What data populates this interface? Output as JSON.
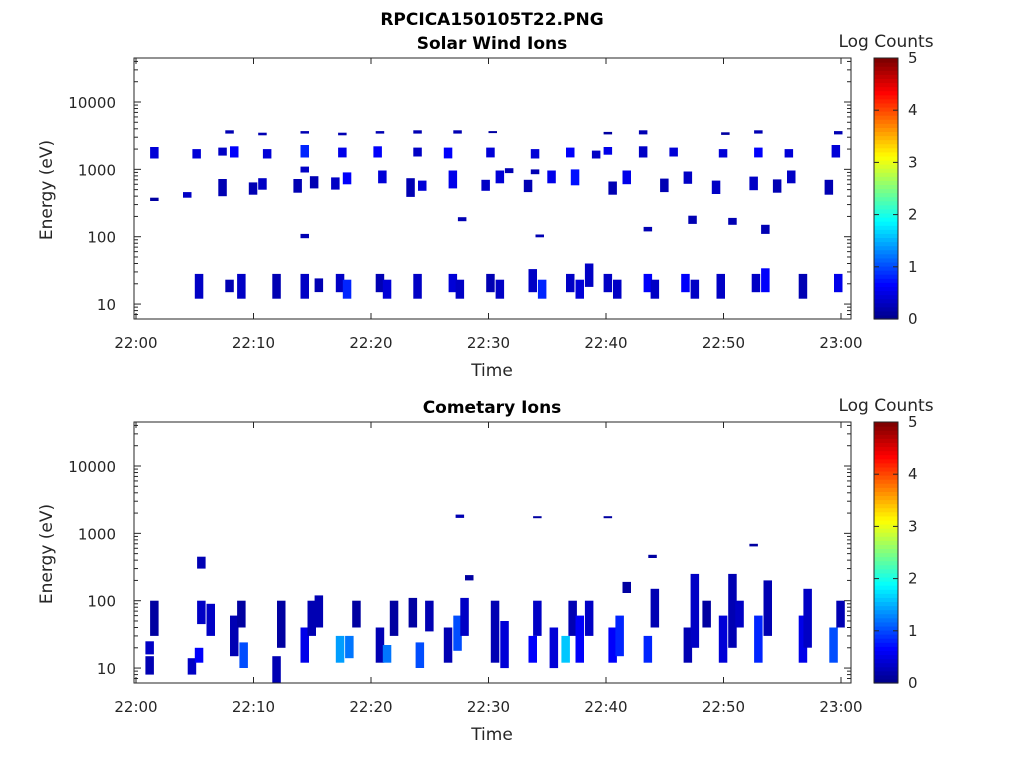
{
  "figure_title": "RPCICA150105T22.PNG",
  "colors": {
    "colormap": [
      "#00008f",
      "#0000ff",
      "#0080ff",
      "#00ffff",
      "#80ff80",
      "#ffff00",
      "#ff8000",
      "#ff0000",
      "#800000"
    ]
  },
  "chart_data": [
    {
      "type": "heatmap",
      "title": "Solar Wind Ions",
      "xlabel": "Time",
      "ylabel": "Energy (eV)",
      "x_range": [
        "22:00",
        "23:00"
      ],
      "x_ticks": [
        "22:00",
        "22:10",
        "22:20",
        "22:30",
        "22:40",
        "22:50",
        "23:00"
      ],
      "y_scale": "log",
      "y_range": [
        6,
        45000
      ],
      "y_ticks": [
        {
          "value": 10,
          "label": "10"
        },
        {
          "value": 100,
          "label": "100"
        },
        {
          "value": 1000,
          "label": "1000"
        },
        {
          "value": 10000,
          "label": "10000"
        }
      ],
      "colorbar": {
        "label": "Log Counts",
        "range": [
          0,
          5
        ],
        "ticks": [
          "0",
          "1",
          "2",
          "3",
          "4",
          "5"
        ]
      },
      "cells": [
        [
          1.2,
          1450,
          2150,
          0.4
        ],
        [
          1.2,
          340,
          380,
          0.1
        ],
        [
          4.0,
          380,
          460,
          0.3
        ],
        [
          4.8,
          1450,
          2000,
          0.4
        ],
        [
          7.0,
          1600,
          2100,
          0.3
        ],
        [
          7.0,
          400,
          720,
          0.2
        ],
        [
          7.6,
          3400,
          3800,
          0.2
        ],
        [
          8.0,
          1500,
          2200,
          0.6
        ],
        [
          9.6,
          420,
          640,
          0.2
        ],
        [
          10.4,
          500,
          740,
          0.3
        ],
        [
          10.4,
          3200,
          3500,
          0.2
        ],
        [
          10.8,
          1450,
          2000,
          0.4
        ],
        [
          13.4,
          450,
          720,
          0.2
        ],
        [
          14.0,
          900,
          1100,
          0.3
        ],
        [
          14.0,
          1500,
          2300,
          0.8
        ],
        [
          14.0,
          3400,
          3700,
          0.2
        ],
        [
          14.0,
          95,
          110,
          0.2
        ],
        [
          14.8,
          520,
          790,
          0.2
        ],
        [
          16.6,
          500,
          760,
          0.3
        ],
        [
          17.2,
          1500,
          2100,
          0.5
        ],
        [
          17.2,
          3200,
          3500,
          0.2
        ],
        [
          17.6,
          600,
          900,
          0.6
        ],
        [
          20.2,
          1500,
          2200,
          0.6
        ],
        [
          20.4,
          3400,
          3700,
          0.2
        ],
        [
          20.6,
          620,
          960,
          0.4
        ],
        [
          23.0,
          390,
          740,
          0.2
        ],
        [
          23.6,
          1550,
          2100,
          0.3
        ],
        [
          23.6,
          3400,
          3800,
          0.2
        ],
        [
          24.0,
          480,
          680,
          0.4
        ],
        [
          26.2,
          1450,
          2100,
          0.6
        ],
        [
          26.6,
          520,
          960,
          0.5
        ],
        [
          27.0,
          3400,
          3800,
          0.2
        ],
        [
          27.4,
          170,
          195,
          0.2
        ],
        [
          29.4,
          480,
          700,
          0.3
        ],
        [
          29.8,
          1500,
          2100,
          0.4
        ],
        [
          30.0,
          3500,
          3700,
          0.1
        ],
        [
          30.6,
          620,
          960,
          0.4
        ],
        [
          31.4,
          880,
          1040,
          0.2
        ],
        [
          33.0,
          460,
          700,
          0.2
        ],
        [
          33.6,
          1450,
          2000,
          0.4
        ],
        [
          33.6,
          850,
          1000,
          0.2
        ],
        [
          34.0,
          98,
          108,
          0.2
        ],
        [
          35.0,
          620,
          960,
          0.5
        ],
        [
          36.6,
          1500,
          2100,
          0.6
        ],
        [
          37.0,
          580,
          1000,
          0.7
        ],
        [
          38.8,
          1450,
          1900,
          0.3
        ],
        [
          39.8,
          1650,
          2150,
          0.5
        ],
        [
          39.8,
          3300,
          3600,
          0.1
        ],
        [
          40.2,
          420,
          660,
          0.2
        ],
        [
          41.4,
          600,
          960,
          0.5
        ],
        [
          42.8,
          3300,
          3800,
          0.2
        ],
        [
          42.8,
          1500,
          2200,
          0.3
        ],
        [
          43.2,
          120,
          140,
          0.2
        ],
        [
          44.6,
          460,
          730,
          0.2
        ],
        [
          45.4,
          1550,
          2100,
          0.4
        ],
        [
          46.6,
          610,
          930,
          0.3
        ],
        [
          47.0,
          155,
          205,
          0.2
        ],
        [
          49.0,
          430,
          680,
          0.3
        ],
        [
          49.6,
          1500,
          2000,
          0.4
        ],
        [
          49.8,
          3250,
          3550,
          0.1
        ],
        [
          50.4,
          150,
          190,
          0.2
        ],
        [
          52.2,
          490,
          780,
          0.3
        ],
        [
          52.6,
          1500,
          2100,
          0.6
        ],
        [
          52.6,
          3400,
          3800,
          0.2
        ],
        [
          53.2,
          110,
          150,
          0.2
        ],
        [
          54.2,
          450,
          710,
          0.2
        ],
        [
          55.2,
          1500,
          2000,
          0.4
        ],
        [
          55.4,
          620,
          960,
          0.3
        ],
        [
          58.6,
          420,
          700,
          0.2
        ],
        [
          59.2,
          1500,
          2300,
          0.4
        ],
        [
          59.4,
          3300,
          3700,
          0.2
        ],
        [
          5.0,
          12,
          28,
          0.3
        ],
        [
          7.6,
          15,
          23,
          0.2
        ],
        [
          8.6,
          12,
          28,
          0.3
        ],
        [
          11.6,
          12,
          28,
          0.2
        ],
        [
          14.0,
          12,
          28,
          0.3
        ],
        [
          15.2,
          15,
          24,
          0.2
        ],
        [
          17.0,
          15,
          28,
          0.3
        ],
        [
          17.6,
          12,
          23,
          0.8
        ],
        [
          20.4,
          15,
          28,
          0.2
        ],
        [
          21.0,
          12,
          23,
          0.4
        ],
        [
          23.6,
          12,
          28,
          0.3
        ],
        [
          26.6,
          15,
          28,
          0.4
        ],
        [
          27.2,
          12,
          23,
          0.3
        ],
        [
          29.8,
          15,
          28,
          0.2
        ],
        [
          30.6,
          12,
          23,
          0.3
        ],
        [
          33.4,
          15,
          33,
          0.3
        ],
        [
          34.2,
          12,
          23,
          0.8
        ],
        [
          36.6,
          15,
          28,
          0.3
        ],
        [
          37.4,
          12,
          23,
          0.4
        ],
        [
          38.2,
          18,
          40,
          0.3
        ],
        [
          39.8,
          15,
          28,
          0.3
        ],
        [
          40.6,
          12,
          23,
          0.3
        ],
        [
          43.2,
          15,
          28,
          0.6
        ],
        [
          43.8,
          12,
          23,
          0.3
        ],
        [
          46.4,
          15,
          28,
          0.6
        ],
        [
          47.2,
          12,
          23,
          0.3
        ],
        [
          49.4,
          12,
          28,
          0.3
        ],
        [
          52.4,
          15,
          28,
          0.3
        ],
        [
          53.2,
          15,
          34,
          0.6
        ],
        [
          56.4,
          12,
          28,
          0.2
        ],
        [
          59.4,
          15,
          28,
          0.5
        ]
      ]
    },
    {
      "type": "heatmap",
      "title": "Cometary Ions",
      "xlabel": "Time",
      "ylabel": "Energy (eV)",
      "x_range": [
        "22:00",
        "23:00"
      ],
      "x_ticks": [
        "22:00",
        "22:10",
        "22:20",
        "22:30",
        "22:40",
        "22:50",
        "23:00"
      ],
      "y_scale": "log",
      "y_range": [
        6,
        45000
      ],
      "y_ticks": [
        {
          "value": 10,
          "label": "10"
        },
        {
          "value": 100,
          "label": "100"
        },
        {
          "value": 1000,
          "label": "1000"
        },
        {
          "value": 10000,
          "label": "10000"
        }
      ],
      "colorbar": {
        "label": "Log Counts",
        "range": [
          0,
          5
        ],
        "ticks": [
          "0",
          "1",
          "2",
          "3",
          "4",
          "5"
        ]
      },
      "cells": [
        [
          0.8,
          8,
          15,
          0.2
        ],
        [
          0.8,
          16,
          25,
          0.3
        ],
        [
          1.2,
          30,
          100,
          0.1
        ],
        [
          4.4,
          8,
          14,
          0.3
        ],
        [
          5.0,
          12,
          20,
          0.6
        ],
        [
          5.2,
          45,
          100,
          0.3
        ],
        [
          5.2,
          300,
          450,
          0.2
        ],
        [
          6.0,
          30,
          90,
          0.3
        ],
        [
          8.0,
          15,
          60,
          0.2
        ],
        [
          8.8,
          10,
          24,
          1.0
        ],
        [
          8.6,
          40,
          100,
          0.1
        ],
        [
          11.6,
          6,
          15,
          0.2
        ],
        [
          12.0,
          20,
          100,
          0.1
        ],
        [
          14.0,
          12,
          40,
          0.5
        ],
        [
          14.6,
          30,
          100,
          0.2
        ],
        [
          15.2,
          40,
          120,
          0.2
        ],
        [
          17.0,
          12,
          30,
          1.4
        ],
        [
          17.8,
          14,
          30,
          1.2
        ],
        [
          18.4,
          40,
          100,
          0.1
        ],
        [
          20.4,
          12,
          40,
          0.2
        ],
        [
          21.0,
          12,
          22,
          1.2
        ],
        [
          21.6,
          30,
          100,
          0.1
        ],
        [
          23.2,
          40,
          110,
          0.1
        ],
        [
          23.8,
          10,
          24,
          1.0
        ],
        [
          24.6,
          35,
          100,
          0.2
        ],
        [
          26.2,
          12,
          40,
          0.2
        ],
        [
          27.0,
          18,
          60,
          1.0
        ],
        [
          27.2,
          1700,
          1900,
          0.2
        ],
        [
          27.6,
          30,
          110,
          0.3
        ],
        [
          28.0,
          200,
          240,
          0.1
        ],
        [
          30.2,
          12,
          100,
          0.2
        ],
        [
          31.0,
          10,
          50,
          0.4
        ],
        [
          33.4,
          12,
          30,
          0.6
        ],
        [
          33.8,
          30,
          100,
          0.3
        ],
        [
          33.8,
          1700,
          1800,
          0.1
        ],
        [
          35.2,
          10,
          40,
          0.4
        ],
        [
          36.2,
          12,
          30,
          1.6
        ],
        [
          36.8,
          30,
          100,
          0.2
        ],
        [
          37.4,
          12,
          60,
          0.6
        ],
        [
          38.2,
          30,
          100,
          0.3
        ],
        [
          39.8,
          1700,
          1800,
          0.1
        ],
        [
          40.2,
          12,
          40,
          0.6
        ],
        [
          40.8,
          15,
          60,
          0.8
        ],
        [
          41.4,
          130,
          190,
          0.1
        ],
        [
          43.2,
          12,
          30,
          0.8
        ],
        [
          43.8,
          40,
          150,
          0.2
        ],
        [
          43.6,
          430,
          480,
          0.1
        ],
        [
          46.6,
          12,
          40,
          0.2
        ],
        [
          47.2,
          20,
          250,
          0.3
        ],
        [
          48.2,
          40,
          100,
          0.1
        ],
        [
          49.6,
          12,
          60,
          0.4
        ],
        [
          50.4,
          20,
          250,
          0.2
        ],
        [
          51.0,
          40,
          100,
          0.3
        ],
        [
          52.2,
          640,
          700,
          0.1
        ],
        [
          52.6,
          12,
          60,
          0.8
        ],
        [
          53.4,
          30,
          200,
          0.2
        ],
        [
          56.4,
          12,
          60,
          0.5
        ],
        [
          56.8,
          20,
          150,
          0.3
        ],
        [
          59.0,
          12,
          40,
          1.0
        ],
        [
          59.6,
          40,
          100,
          0.2
        ]
      ]
    }
  ]
}
